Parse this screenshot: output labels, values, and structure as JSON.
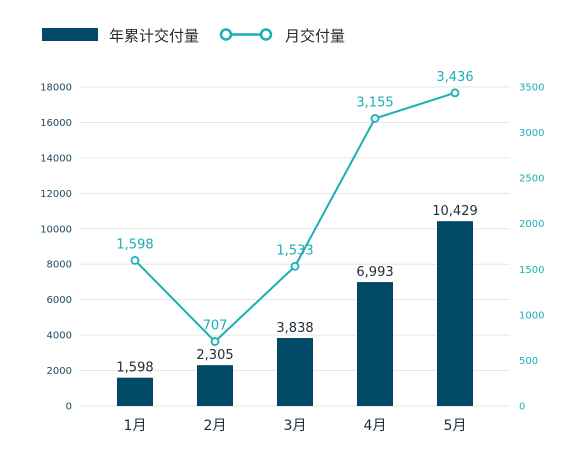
{
  "colors": {
    "bar": "#004a67",
    "line": "#19b0b5",
    "grid": "#e6e6e6",
    "text": "#1f2d38"
  },
  "legend": {
    "bar_series": "年累计交付量",
    "line_series": "月交付量"
  },
  "chart_data": {
    "type": "bar",
    "categories": [
      "1月",
      "2月",
      "3月",
      "4月",
      "5月"
    ],
    "series": [
      {
        "name": "年累计交付量",
        "type": "bar",
        "axis": "left",
        "values": [
          1598,
          2305,
          3838,
          6993,
          10429
        ],
        "labels": [
          "1,598",
          "2,305",
          "3,838",
          "6,993",
          "10,429"
        ]
      },
      {
        "name": "月交付量",
        "type": "line",
        "axis": "right",
        "values": [
          1598,
          707,
          1533,
          3155,
          3436
        ],
        "labels": [
          "1,598",
          "707",
          "1,533",
          "3,155",
          "3,436"
        ]
      }
    ],
    "y_left": {
      "ylim": [
        0,
        18000
      ],
      "ticks": [
        0,
        2000,
        4000,
        6000,
        8000,
        10000,
        12000,
        14000,
        16000,
        18000
      ]
    },
    "y_right": {
      "ylim": [
        0,
        3500
      ],
      "ticks": [
        0,
        500,
        1000,
        1500,
        2000,
        2500,
        3000,
        3500
      ]
    },
    "grid": true,
    "legend_position": "top-left"
  }
}
